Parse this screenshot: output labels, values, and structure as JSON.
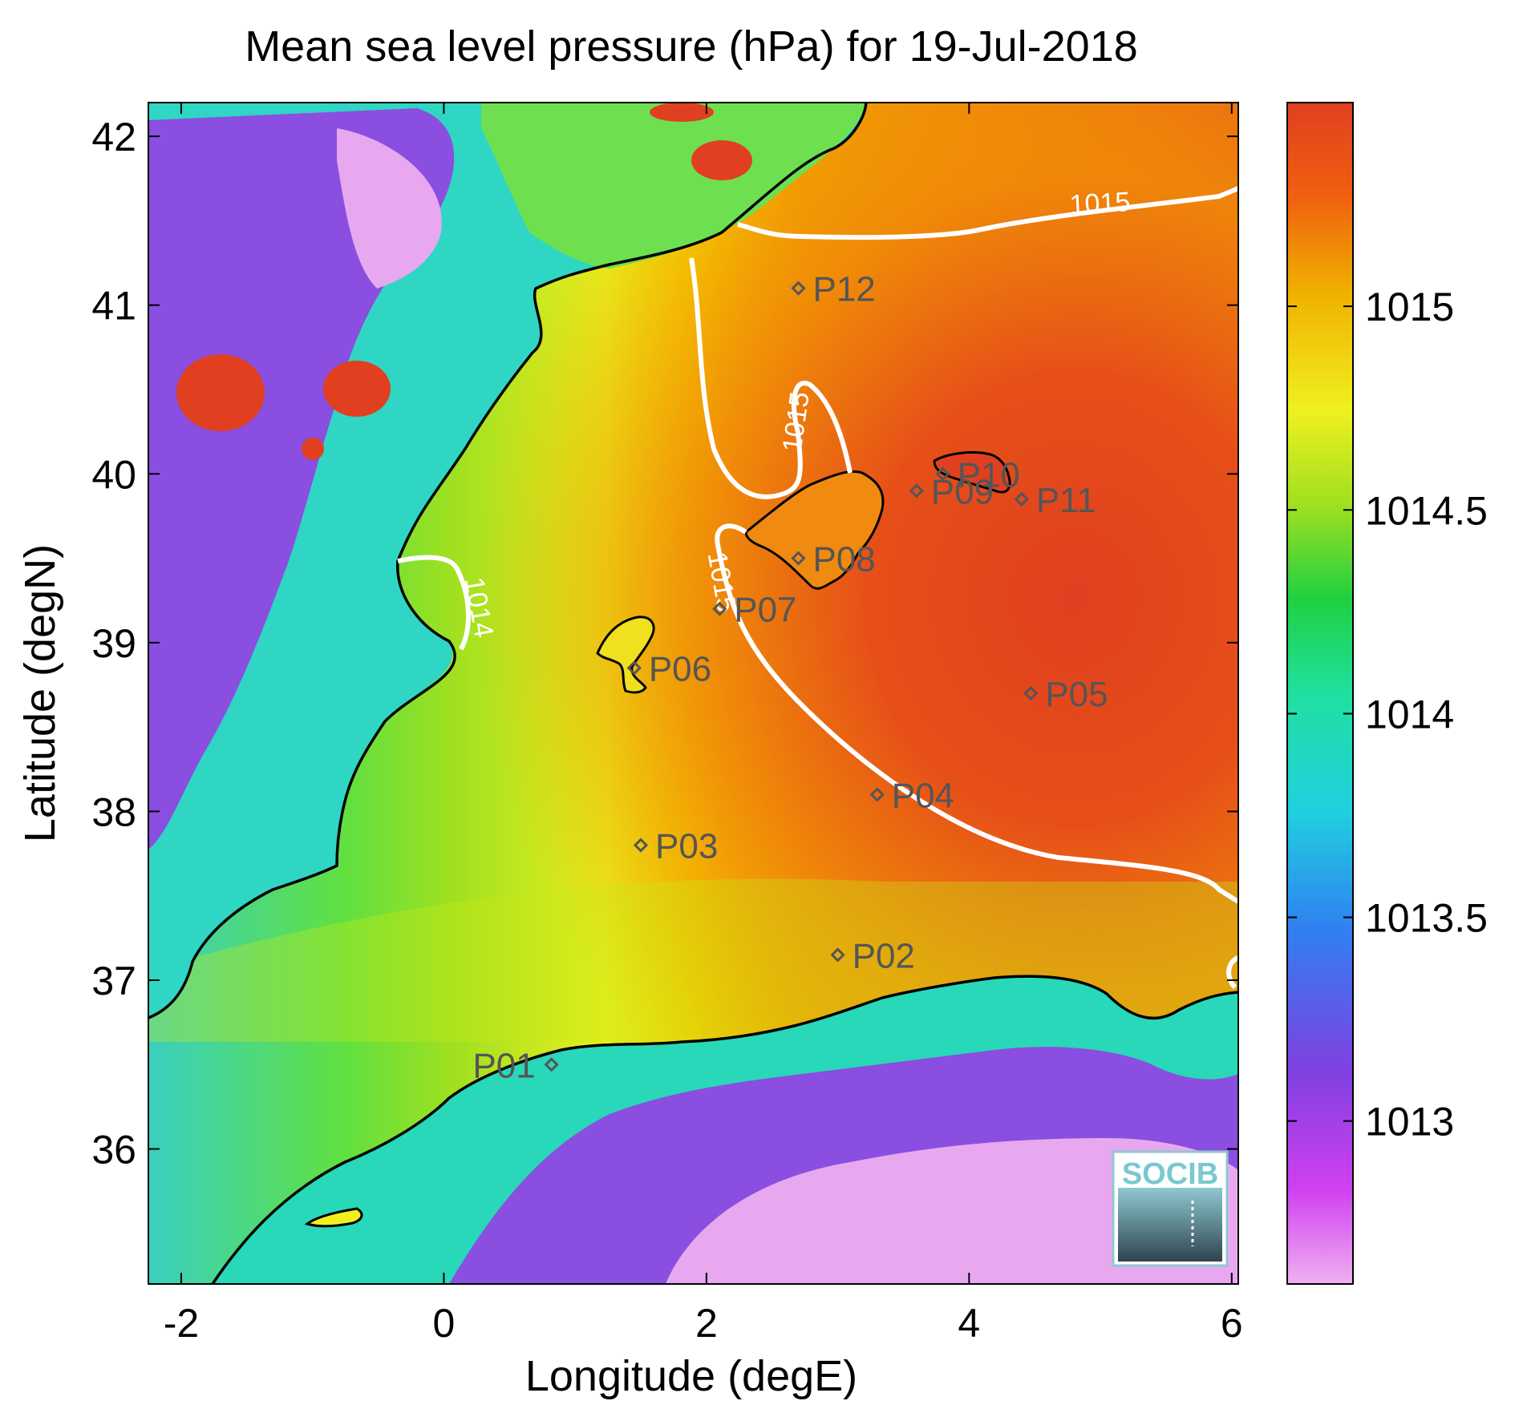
{
  "title": "Mean sea level pressure (hPa) for 19-Jul-2018",
  "xlabel": "Longitude (degE)",
  "ylabel": "Latitude (degN)",
  "x_ticks": [
    "-2",
    "0",
    "2",
    "4",
    "6"
  ],
  "y_ticks": [
    "42",
    "41",
    "40",
    "39",
    "38",
    "37",
    "36"
  ],
  "x_range": [
    -2.25,
    6.05
  ],
  "y_range": [
    35.2,
    42.2
  ],
  "colorbar": {
    "ticks": [
      "1015",
      "1014.5",
      "1014",
      "1013.5",
      "1013"
    ],
    "range": [
      1012.6,
      1015.5
    ],
    "colors": [
      "#f0b0f0",
      "#d040f0",
      "#8040e0",
      "#3080f0",
      "#20d0e0",
      "#20e0a0",
      "#20d040",
      "#a0e020",
      "#f0f020",
      "#f0b000",
      "#f06010",
      "#e04020"
    ]
  },
  "stations": [
    {
      "name": "P01",
      "lon": 0.82,
      "lat": 36.5
    },
    {
      "name": "P02",
      "lon": 3.0,
      "lat": 37.15
    },
    {
      "name": "P03",
      "lon": 1.5,
      "lat": 37.8
    },
    {
      "name": "P04",
      "lon": 3.3,
      "lat": 38.1
    },
    {
      "name": "P05",
      "lon": 4.47,
      "lat": 38.7
    },
    {
      "name": "P06",
      "lon": 1.45,
      "lat": 38.85
    },
    {
      "name": "P07",
      "lon": 2.1,
      "lat": 39.2
    },
    {
      "name": "P08",
      "lon": 2.7,
      "lat": 39.5
    },
    {
      "name": "P09",
      "lon": 3.6,
      "lat": 39.9
    },
    {
      "name": "P10",
      "lon": 3.8,
      "lat": 40.0
    },
    {
      "name": "P11",
      "lon": 4.4,
      "lat": 39.85
    },
    {
      "name": "P12",
      "lon": 2.7,
      "lat": 41.1
    }
  ],
  "contour_labels": [
    {
      "text": "1015",
      "lon": 5.0,
      "lat": 41.55,
      "angle": -3
    },
    {
      "text": "1015",
      "lon": 2.75,
      "lat": 40.3,
      "angle": -82
    },
    {
      "text": "1015",
      "lon": 2.05,
      "lat": 39.35,
      "angle": 80
    },
    {
      "text": "1014",
      "lon": 0.2,
      "lat": 39.2,
      "angle": 80
    }
  ],
  "logo_text": "SOCIB"
}
